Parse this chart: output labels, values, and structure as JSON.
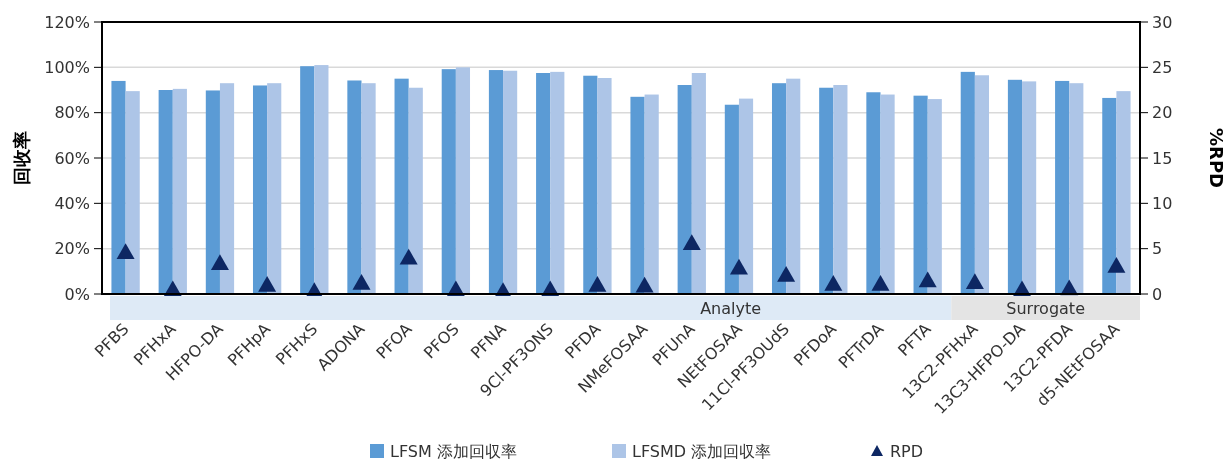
{
  "chart_data": {
    "type": "bar",
    "ylabel": "回收率",
    "y2label": "%RPD",
    "categories": [
      "PFBS",
      "PFHxA",
      "HFPO-DA",
      "PFHpA",
      "PFHxS",
      "ADONA",
      "PFOA",
      "PFOS",
      "PFNA",
      "9Cl-PF3ONS",
      "PFDA",
      "NMeFOSAA",
      "PFUnA",
      "NEtFOSAA",
      "11Cl-PF3OUdS",
      "PFDoA",
      "PFTrDA",
      "PFTA",
      "13C2-PFHxA",
      "13C3-HFPO-DA",
      "13C2-PFDA",
      "d5-NEtFOSAA"
    ],
    "series": [
      {
        "name": "LFSM 添加回収率",
        "color": "#5b9bd5",
        "values": [
          94,
          90,
          89.8,
          92,
          100.5,
          94.2,
          95,
          99.2,
          98.8,
          97.5,
          96.3,
          87,
          92.2,
          83.5,
          93,
          91,
          89,
          87.5,
          98,
          94.5,
          94,
          86.5
        ]
      },
      {
        "name": "LFSMD 添加回収率",
        "color": "#adc5e7",
        "values": [
          89.5,
          90.5,
          93,
          93,
          101,
          93,
          91,
          100,
          98.5,
          98,
          95.3,
          88,
          97.5,
          86.2,
          95,
          92.2,
          88,
          86,
          96.5,
          93.8,
          93,
          89.5
        ]
      },
      {
        "name": "RPD",
        "type": "scatter",
        "axis": "y2",
        "marker": "triangle",
        "color": "#0d2763",
        "values": [
          4.6,
          0.5,
          3.4,
          1.0,
          0.3,
          1.2,
          4.0,
          0.5,
          0.3,
          0.5,
          1.0,
          0.9,
          5.6,
          2.9,
          2.1,
          1.1,
          1.1,
          1.5,
          1.3,
          0.5,
          0.6,
          3.1
        ]
      }
    ],
    "ylim": [
      0,
      120
    ],
    "yticks": [
      {
        "value": 0,
        "label": "0%"
      },
      {
        "value": 20,
        "label": "20%"
      },
      {
        "value": 40,
        "label": "40%"
      },
      {
        "value": 60,
        "label": "60%"
      },
      {
        "value": 80,
        "label": "80%"
      },
      {
        "value": 100,
        "label": "100%"
      },
      {
        "value": 120,
        "label": "120%"
      }
    ],
    "y2lim": [
      0,
      30
    ],
    "y2ticks": [
      0,
      5,
      10,
      15,
      20,
      25,
      30
    ],
    "annotations": [
      "Analyte",
      "Surrogate"
    ],
    "grid": "y",
    "legend": "bottom"
  }
}
